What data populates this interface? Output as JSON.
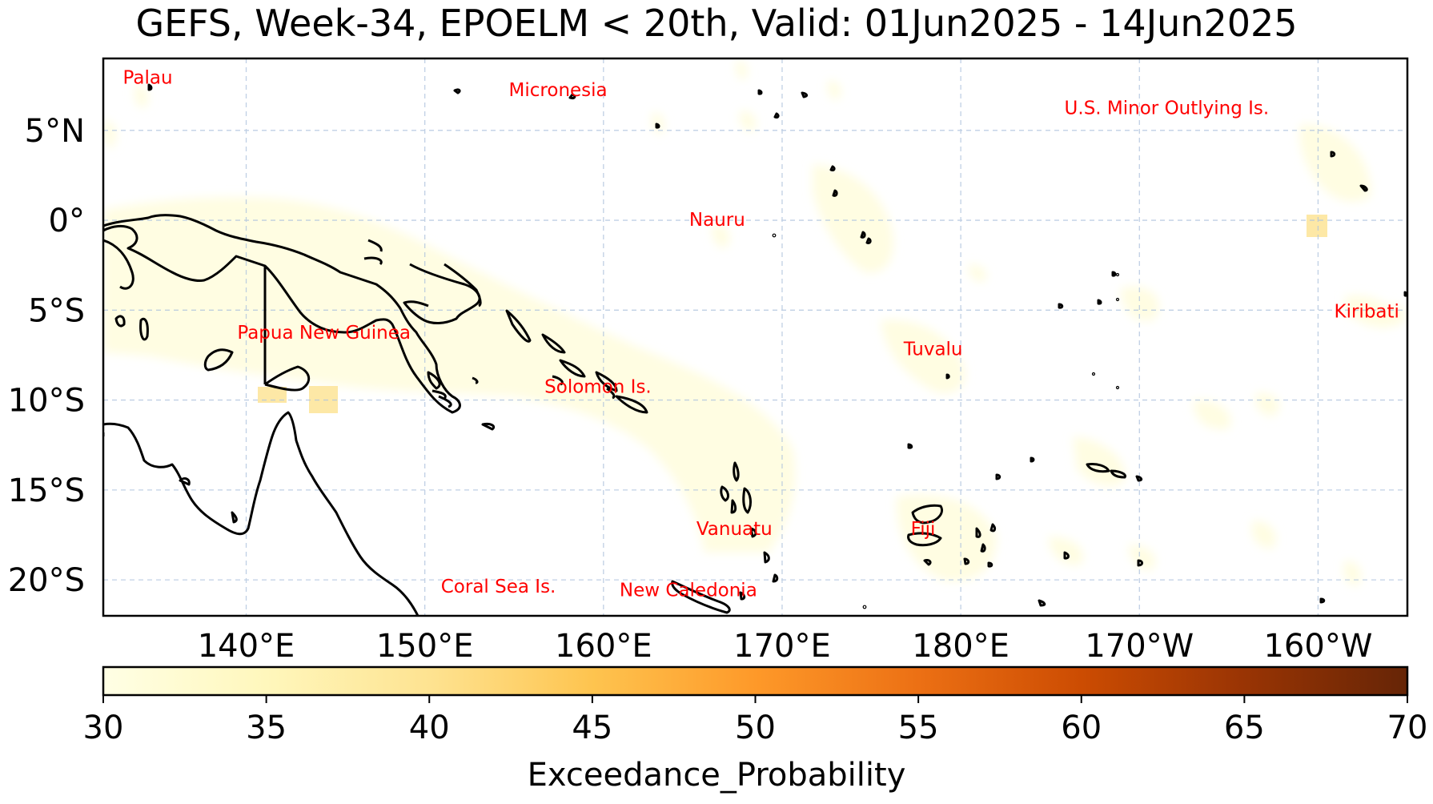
{
  "title": "GEFS, Week-34, EPOELM < 20th, Valid: 01Jun2025 - 14Jun2025",
  "map": {
    "lon_range": [
      132,
      205
    ],
    "lat_range": [
      -22,
      9
    ],
    "lat_ticks": [
      {
        "lat": 5,
        "label": "5°N"
      },
      {
        "lat": 0,
        "label": "0°"
      },
      {
        "lat": -5,
        "label": "5°S"
      },
      {
        "lat": -10,
        "label": "10°S"
      },
      {
        "lat": -15,
        "label": "15°S"
      },
      {
        "lat": -20,
        "label": "20°S"
      }
    ],
    "lon_ticks": [
      {
        "lon": 140,
        "label": "140°E"
      },
      {
        "lon": 150,
        "label": "150°E"
      },
      {
        "lon": 160,
        "label": "160°E"
      },
      {
        "lon": 170,
        "label": "170°E"
      },
      {
        "lon": 180,
        "label": "180°E"
      },
      {
        "lon": 190,
        "label": "170°W"
      },
      {
        "lon": 200,
        "label": "160°W"
      }
    ],
    "gridlines": true,
    "region_labels": [
      {
        "name": "Palau",
        "lon": 133.1,
        "lat": 7.6
      },
      {
        "name": "Micronesia",
        "lon": 154.7,
        "lat": 6.9
      },
      {
        "name": "U.S. Minor Outlying Is.",
        "lon": 185.8,
        "lat": 5.9
      },
      {
        "name": "Nauru",
        "lon": 164.8,
        "lat": -0.3
      },
      {
        "name": "Kiribati",
        "lon": 200.9,
        "lat": -5.4
      },
      {
        "name": "Papua New Guinea",
        "lon": 139.5,
        "lat": -6.6
      },
      {
        "name": "Tuvalu",
        "lon": 176.8,
        "lat": -7.5
      },
      {
        "name": "Solomon Is.",
        "lon": 156.7,
        "lat": -9.6
      },
      {
        "name": "Vanuatu",
        "lon": 165.2,
        "lat": -17.5
      },
      {
        "name": "Fiji",
        "lon": 177.2,
        "lat": -17.5
      },
      {
        "name": "Coral Sea Is.",
        "lon": 150.9,
        "lat": -20.7
      },
      {
        "name": "New Caledonia",
        "lon": 160.9,
        "lat": -20.9
      }
    ],
    "label_color": "#ff0000"
  },
  "colorbar": {
    "min": 30,
    "max": 70,
    "ticks": [
      "30",
      "35",
      "40",
      "45",
      "50",
      "55",
      "60",
      "65",
      "70"
    ],
    "label": "Exceedance_Probability",
    "colors": [
      "#ffffe5",
      "#fff7bc",
      "#fee391",
      "#fec44f",
      "#fe9929",
      "#ec7014",
      "#cc4c02",
      "#993404",
      "#662506"
    ]
  }
}
